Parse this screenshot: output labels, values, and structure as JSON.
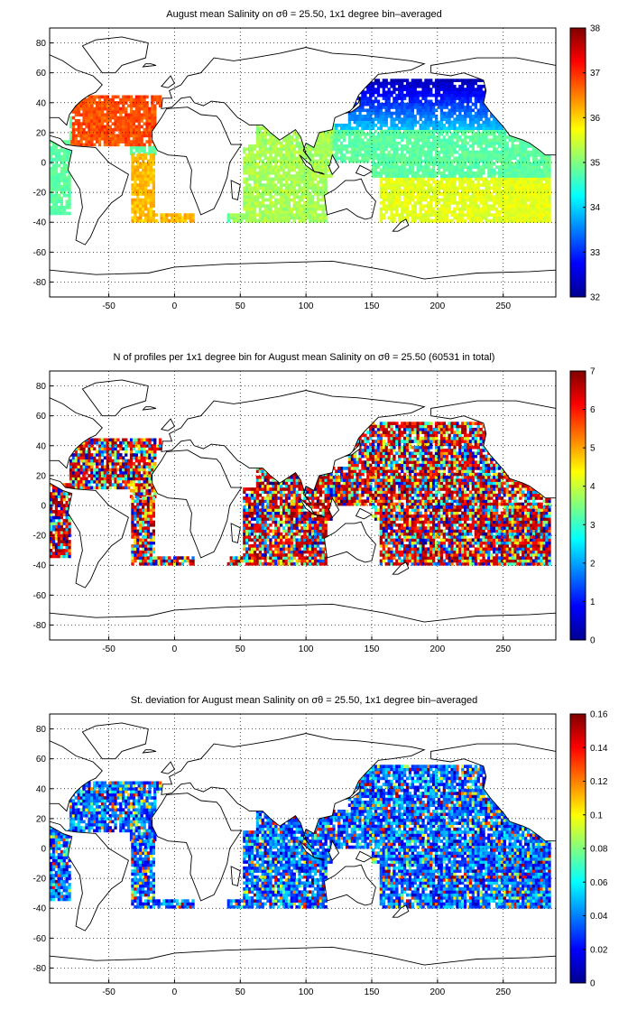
{
  "figure": {
    "panels": [
      {
        "id": "salinity",
        "title": "August mean Salinity on σθ = 25.50, 1x1 degree bin–averaged",
        "colorbar": {
          "min": 32,
          "max": 38,
          "ticks": [
            "32",
            "33",
            "34",
            "35",
            "36",
            "37",
            "38"
          ]
        }
      },
      {
        "id": "profiles",
        "title": "N of profiles per 1x1 degree bin for August mean Salinity on σθ = 25.50 (60531 in total)",
        "colorbar": {
          "min": 0,
          "max": 7,
          "ticks": [
            "0",
            "1",
            "2",
            "3",
            "4",
            "5",
            "6",
            "7"
          ]
        }
      },
      {
        "id": "stdev",
        "title": "St. deviation for August mean Salinity on σθ = 25.50, 1x1 degree bin–averaged",
        "colorbar": {
          "min": 0,
          "max": 0.16,
          "ticks": [
            "0",
            "0.02",
            "0.04",
            "0.06",
            "0.08",
            "0.1",
            "0.12",
            "0.14",
            "0.16"
          ]
        }
      }
    ],
    "x_ticks": [
      "-50",
      "0",
      "50",
      "100",
      "150",
      "200",
      "250"
    ],
    "y_ticks": [
      "80",
      "60",
      "40",
      "20",
      "0",
      "-20",
      "-40",
      "-60",
      "-80"
    ],
    "x_range": [
      -95,
      290
    ],
    "y_range": [
      -90,
      90
    ],
    "colormap": "jet",
    "grid": "dotted"
  }
}
